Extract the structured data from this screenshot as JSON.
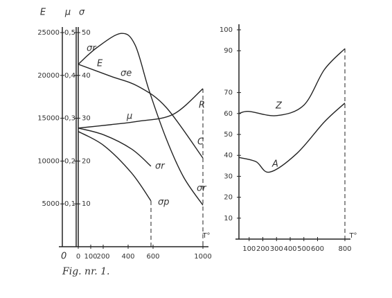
{
  "chart_data": [
    {
      "type": "line",
      "xlabel": "T°",
      "xlim": [
        0,
        1000
      ],
      "xticks": [
        0,
        100,
        200,
        400,
        600,
        1000
      ],
      "ylabel": "σ",
      "ylim": [
        0,
        50
      ],
      "yticks": [
        10,
        20,
        30,
        40,
        50
      ],
      "y2label": "μ",
      "y2lim": [
        0,
        0.5
      ],
      "y2ticks": [
        {
          "value": 0.1,
          "label": "0,1"
        },
        {
          "value": 0.2,
          "label": "0,2"
        },
        {
          "value": 0.3,
          "label": "0,3"
        },
        {
          "value": 0.4,
          "label": "0,4"
        },
        {
          "value": 0.5,
          "label": "0,5"
        }
      ],
      "y3label": "E",
      "y3lim": [
        0,
        25000
      ],
      "y3ticks": [
        5000,
        10000,
        15000,
        20000,
        25000
      ],
      "series": [
        {
          "name": "σr",
          "color": "#222",
          "x": [
            0,
            150,
            344,
            456,
            567,
            706,
            844,
            1000
          ],
          "values": [
            42.6,
            46.5,
            49.8,
            47.1,
            36.6,
            25.2,
            16.3,
            9.7
          ]
        },
        {
          "name": "E",
          "color": "#222",
          "axis": "y3",
          "x": [
            0,
            261,
            483,
            706,
            1000
          ],
          "values": [
            21300,
            19900,
            18700,
            16250,
            10350
          ]
        },
        {
          "name": "μ",
          "color": "#222",
          "axis": "y2",
          "x": [
            0,
            261,
            483,
            761,
            1000
          ],
          "values": [
            0.277,
            0.285,
            0.293,
            0.309,
            0.369
          ]
        },
        {
          "name": "σr",
          "color": "#222",
          "x": [
            0,
            206,
            428,
            583
          ],
          "values": [
            27.7,
            26.1,
            22.8,
            18.8
          ]
        },
        {
          "name": "σp",
          "color": "#222",
          "x": [
            0,
            206,
            428,
            583
          ],
          "values": [
            26.9,
            23.6,
            17.2,
            10.7
          ]
        }
      ],
      "annotations": [
        "σe",
        "σr",
        "R",
        "C",
        "0"
      ]
    },
    {
      "type": "line",
      "xlabel": "T°",
      "xlim": [
        0,
        800
      ],
      "xticks": [
        100,
        200,
        300,
        400,
        500,
        600,
        800
      ],
      "ylim": [
        0,
        100
      ],
      "yticks": [
        10,
        20,
        30,
        40,
        50,
        60,
        70,
        90,
        100
      ],
      "series": [
        {
          "name": "Z",
          "color": "#222",
          "x": [
            25,
            100,
            300,
            500,
            650,
            800
          ],
          "values": [
            60,
            61,
            59,
            64,
            81,
            91
          ]
        },
        {
          "name": "A",
          "color": "#222",
          "x": [
            25,
            150,
            250,
            450,
            650,
            800
          ],
          "values": [
            39,
            37,
            32,
            41,
            56,
            65
          ]
        }
      ]
    }
  ],
  "caption": "Fig. nr. 1."
}
